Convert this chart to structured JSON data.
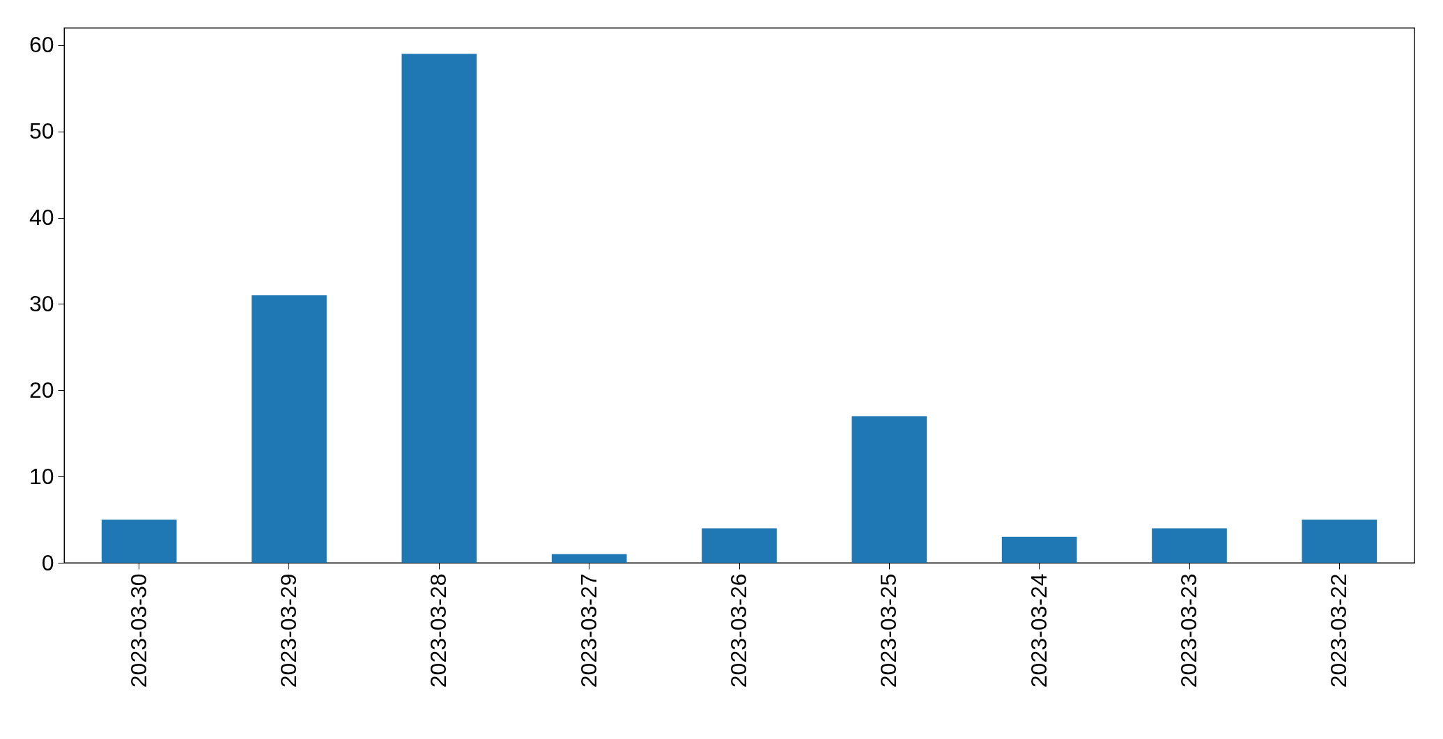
{
  "chart_data": {
    "type": "bar",
    "categories": [
      "2023-03-30",
      "2023-03-29",
      "2023-03-28",
      "2023-03-27",
      "2023-03-26",
      "2023-03-25",
      "2023-03-24",
      "2023-03-23",
      "2023-03-22"
    ],
    "values": [
      5,
      31,
      59,
      1,
      4,
      17,
      3,
      4,
      5
    ],
    "color": "#1f77b4",
    "ylim": [
      0,
      62
    ],
    "yticks": [
      0,
      10,
      20,
      30,
      40,
      50,
      60
    ],
    "grid": false
  }
}
